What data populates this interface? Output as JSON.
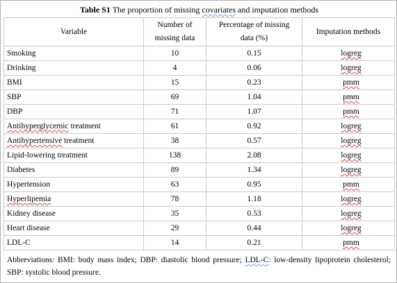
{
  "caption": {
    "label": "Table S1",
    "prefix": "The proportion of missing ",
    "wavy": "covariates",
    "suffix": " and imputation methods"
  },
  "headers": {
    "variable": "Variable",
    "missing_line1": "Number of",
    "missing_line2": "missing data",
    "pct_line1": "Percentage of missing",
    "pct_line2": "data (%)",
    "method": "Imputation methods"
  },
  "rows": [
    {
      "variable": "Smoking",
      "missing": "10",
      "percent": "0.15",
      "method": "logreg"
    },
    {
      "variable": "Drinking",
      "missing": "4",
      "percent": "0.06",
      "method": "logreg"
    },
    {
      "variable": "BMI",
      "missing": "15",
      "percent": "0.23",
      "method": "pmm"
    },
    {
      "variable": "SBP",
      "missing": "69",
      "percent": "1.04",
      "method": "pmm"
    },
    {
      "variable": "DBP",
      "missing": "71",
      "percent": "1.07",
      "method": "pmm"
    },
    {
      "variable": "Antihyperglycemic treatment",
      "missing": "61",
      "percent": "0.92",
      "method": "logreg"
    },
    {
      "variable": "Antihypertensive treatment",
      "missing": "38",
      "percent": "0.57",
      "method": "logreg"
    },
    {
      "variable": "Lipid-lowering treatment",
      "missing": "138",
      "percent": "2.08",
      "method": "logreg"
    },
    {
      "variable": "Diabetes",
      "missing": "89",
      "percent": "1.34",
      "method": "logreg"
    },
    {
      "variable": "Hypertension",
      "missing": "63",
      "percent": "0.95",
      "method": "pmm"
    },
    {
      "variable": "Hyperlipemia",
      "missing": "78",
      "percent": "1.18",
      "method": "logreg"
    },
    {
      "variable": "Kidney disease",
      "missing": "35",
      "percent": "0.53",
      "method": "logreg"
    },
    {
      "variable": "Heart disease",
      "missing": "29",
      "percent": "0.44",
      "method": "logreg"
    },
    {
      "variable": "LDL-C",
      "missing": "14",
      "percent": "0.21",
      "method": "pmm"
    }
  ],
  "notes": {
    "text_before": "Abbreviations: BMI: body mass index; DBP: diastolic blood pressure; ",
    "ldl_term": "LDL-C",
    "text_after": ": low-density lipoprotein cholesterol; SBP: systolic blood pressure."
  }
}
